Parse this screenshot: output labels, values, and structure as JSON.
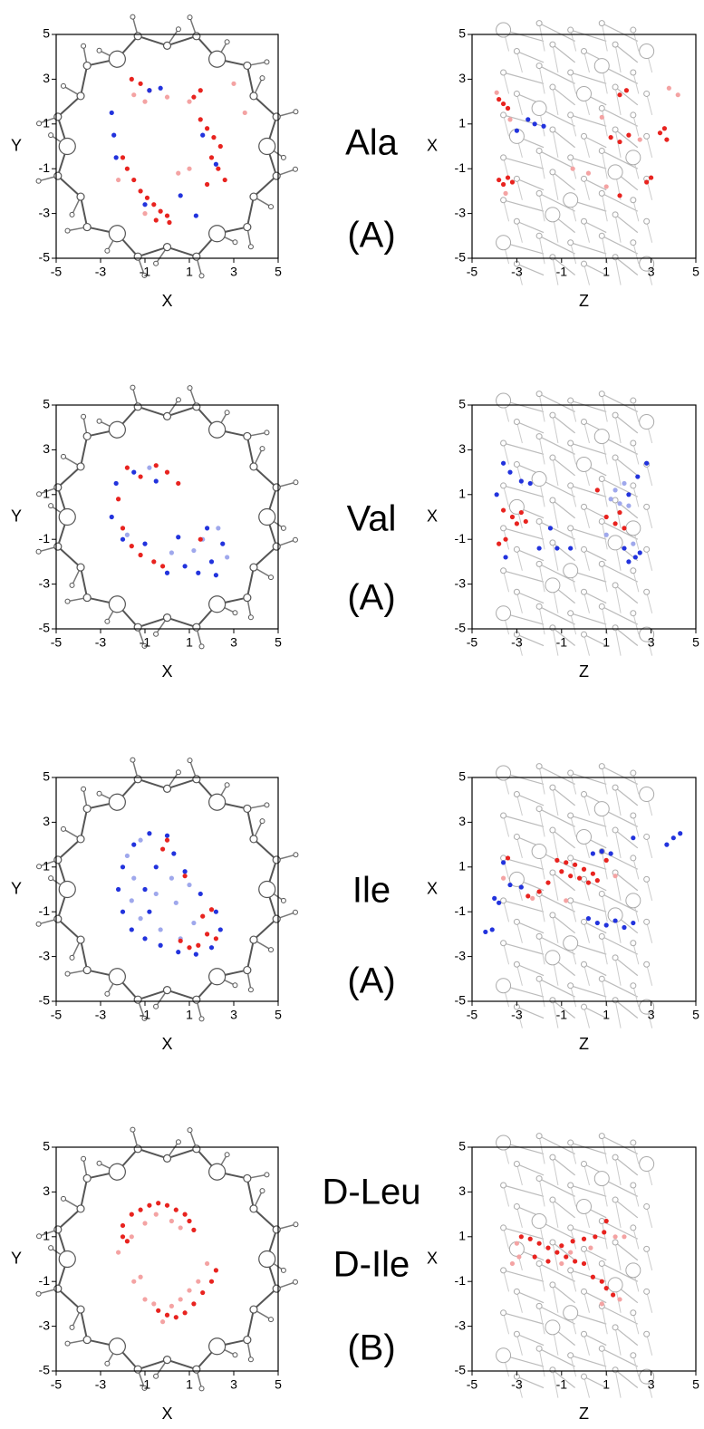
{
  "chart_data": [
    {
      "type": "scatter",
      "xlabel": "X",
      "ylabel": "Y",
      "xlim": [
        -5,
        5
      ],
      "ylim": [
        -5,
        5
      ],
      "xticks": [
        -5,
        -3,
        -1,
        1,
        3,
        5
      ],
      "yticks": [
        -5,
        -3,
        -1,
        1,
        3,
        5
      ],
      "decoration": "ring",
      "series": [
        {
          "color": "#f4a3a3",
          "x": [
            -1.5,
            -1.0,
            0,
            1.0,
            -2.2,
            -1.0,
            0.5,
            3.5,
            3.0,
            1.0
          ],
          "values": [
            2.3,
            2.0,
            2.2,
            2.0,
            -1.5,
            -3.0,
            -1.2,
            1.5,
            2.8,
            -1.0
          ]
        },
        {
          "color": "#e8231f",
          "x": [
            -1.6,
            -1.2,
            -0.8,
            -2.0,
            -1.8,
            -1.5,
            -1.2,
            -0.9,
            -0.6,
            -0.3,
            0,
            -0.5,
            0.1,
            1.5,
            1.8,
            2.1,
            2.4,
            2.0,
            2.3,
            2.6,
            1.8,
            1.2,
            1.5
          ],
          "values": [
            3,
            2.8,
            2.5,
            -0.5,
            -1.0,
            -1.5,
            -2.0,
            -2.3,
            -2.6,
            -2.9,
            -3.1,
            -3.3,
            -3.4,
            1.2,
            0.8,
            0.4,
            0,
            -0.5,
            -1.0,
            -1.5,
            -1.7,
            2.2,
            2.5
          ]
        },
        {
          "color": "#2233dd",
          "x": [
            -0.8,
            -0.3,
            -2.5,
            -2.4,
            -2.3,
            -1,
            0.6,
            1.3,
            1.6,
            2.2
          ],
          "values": [
            2.5,
            2.6,
            1.5,
            0.5,
            -0.5,
            -2.6,
            -2.2,
            -3.1,
            0.5,
            -0.8
          ]
        }
      ]
    },
    {
      "type": "scatter",
      "xlabel": "Z",
      "ylabel": "X",
      "xlim": [
        -5,
        5
      ],
      "ylim": [
        -5,
        5
      ],
      "xticks": [
        -5,
        -3,
        -1,
        1,
        3,
        5
      ],
      "yticks": [
        -5,
        -3,
        -1,
        1,
        3,
        5
      ],
      "decoration": "column",
      "series": [
        {
          "color": "#f4a3a3",
          "x": [
            -3.9,
            -3.3,
            3.8,
            4.2,
            0.8,
            -0.5,
            0.2,
            1.0,
            2.5,
            -3.5
          ],
          "values": [
            2.4,
            1.2,
            2.6,
            2.3,
            1.3,
            -1.0,
            -1.2,
            -1.8,
            0.3,
            -2.1
          ]
        },
        {
          "color": "#e8231f",
          "x": [
            -3.8,
            -3.6,
            -3.4,
            -3.8,
            -3.6,
            -3.4,
            -3.2,
            1.2,
            1.6,
            2.0,
            3.4,
            3.7,
            3.6,
            2.8,
            1.6,
            1.9,
            1.6,
            3.0
          ],
          "values": [
            2.1,
            1.9,
            1.7,
            -1.5,
            -1.7,
            -1.4,
            -1.6,
            0.4,
            0.2,
            0.5,
            0.6,
            0.3,
            0.8,
            -1.6,
            2.3,
            2.5,
            -2.2,
            -1.4
          ]
        },
        {
          "color": "#2233dd",
          "x": [
            -2.5,
            -2.2,
            -1.8,
            -3.0
          ],
          "values": [
            1.2,
            1.0,
            0.9,
            0.7
          ]
        }
      ]
    },
    {
      "type": "scatter",
      "xlabel": "X",
      "ylabel": "Y",
      "xlim": [
        -5,
        5
      ],
      "ylim": [
        -5,
        5
      ],
      "xticks": [
        -5,
        -3,
        -1,
        1,
        3,
        5
      ],
      "yticks": [
        -5,
        -3,
        -1,
        1,
        3,
        5
      ],
      "decoration": "ring",
      "series": [
        {
          "color": "#9fa8ec",
          "x": [
            1.2,
            1.6,
            2.3,
            0.2,
            -1.8,
            -0.8,
            2.7
          ],
          "values": [
            -1.5,
            -1.0,
            -0.5,
            -1.6,
            -0.8,
            2.2,
            -1.8
          ]
        },
        {
          "color": "#2233dd",
          "x": [
            -2.3,
            -2.5,
            -2.0,
            -1.0,
            0,
            0.8,
            1.4,
            2.0,
            2.5,
            1.8,
            0.5,
            -0.5,
            -1.5,
            2.2
          ],
          "values": [
            1.5,
            0,
            -1.0,
            -1.2,
            -2.5,
            -2.2,
            -2.5,
            -2.0,
            -1.2,
            -0.5,
            -0.9,
            1.6,
            2.0,
            -2.6
          ]
        },
        {
          "color": "#e8231f",
          "x": [
            -1.8,
            -1.2,
            -0.5,
            0,
            -2.2,
            -2.0,
            -1.6,
            -1.2,
            -0.6,
            -0.2,
            0.5,
            1.5
          ],
          "values": [
            2.2,
            1.8,
            2.3,
            2.0,
            0.8,
            -0.5,
            -1.3,
            -1.7,
            -2.0,
            -2.2,
            1.5,
            -1.0
          ]
        }
      ]
    },
    {
      "type": "scatter",
      "xlabel": "Z",
      "ylabel": "X",
      "xlim": [
        -5,
        5
      ],
      "ylim": [
        -5,
        5
      ],
      "xticks": [
        -5,
        -3,
        -1,
        1,
        3,
        5
      ],
      "yticks": [
        -5,
        -3,
        -1,
        1,
        3,
        5
      ],
      "decoration": "column",
      "series": [
        {
          "color": "#9fa8ec",
          "x": [
            1.2,
            1.6,
            2.0,
            1.4,
            1.8,
            1.0,
            2.2
          ],
          "values": [
            0.8,
            0.6,
            0.5,
            1.2,
            1.5,
            -0.8,
            -1.2
          ]
        },
        {
          "color": "#2233dd",
          "x": [
            -3.6,
            -3.3,
            -2.8,
            -2.4,
            -3.9,
            -2.0,
            -1.2,
            -0.6,
            -3.5,
            2.0,
            2.4,
            2.8,
            1.8,
            2.3,
            2.0,
            2.5,
            -1.5
          ],
          "values": [
            2.4,
            2.0,
            1.6,
            1.5,
            1.0,
            -1.4,
            -1.4,
            -1.4,
            -1.8,
            1.0,
            1.8,
            2.4,
            -1.4,
            -1.8,
            -2.0,
            -1.6,
            -0.5
          ]
        },
        {
          "color": "#e8231f",
          "x": [
            -3.2,
            -2.8,
            -2.6,
            -3.0,
            -3.8,
            -3.5,
            1.0,
            1.4,
            1.6,
            1.8,
            -3.6,
            0.6
          ],
          "values": [
            0,
            0.2,
            -0.2,
            -0.3,
            -1.2,
            -1.0,
            0,
            -0.3,
            0.2,
            -0.5,
            0.3,
            1.2
          ]
        }
      ]
    },
    {
      "type": "scatter",
      "xlabel": "X",
      "ylabel": "Y",
      "xlim": [
        -5,
        5
      ],
      "ylim": [
        -5,
        5
      ],
      "xticks": [
        -5,
        -3,
        -1,
        1,
        3,
        5
      ],
      "yticks": [
        -5,
        -3,
        -1,
        1,
        3,
        5
      ],
      "decoration": "ring",
      "series": [
        {
          "color": "#9fa8ec",
          "x": [
            -1.8,
            -1.2,
            -1.5,
            -1.6,
            -1.2,
            -0.3,
            0.6,
            1.2,
            0.4,
            0.2,
            1.0,
            -0.5
          ],
          "values": [
            1.5,
            2.2,
            0.5,
            -0.5,
            -1.3,
            -1.8,
            -2.2,
            -1.5,
            -0.6,
            0.5,
            0.2,
            -0.2
          ]
        },
        {
          "color": "#2233dd",
          "x": [
            -1.5,
            -0.8,
            0,
            -2.0,
            -2.2,
            -2.0,
            -1.6,
            -1.0,
            -0.3,
            0.5,
            1.3,
            2.0,
            2.4,
            2.2,
            1.5,
            0.8,
            0.3,
            -0.5,
            -1.0,
            -0.8
          ],
          "values": [
            2.0,
            2.5,
            2.4,
            1.0,
            0,
            -1.0,
            -1.8,
            -2.2,
            -2.5,
            -2.8,
            -2.9,
            -2.6,
            -1.8,
            -1.0,
            -0.2,
            0.8,
            1.6,
            1.0,
            0,
            -1.0
          ]
        },
        {
          "color": "#e8231f",
          "x": [
            0,
            -0.2,
            0.6,
            1.0,
            1.4,
            1.8,
            2.2,
            1.6,
            2.0,
            0.8
          ],
          "values": [
            2.2,
            1.8,
            -2.3,
            -2.6,
            -2.5,
            -2.0,
            -2.2,
            -1.2,
            -0.9,
            0.6
          ]
        }
      ]
    },
    {
      "type": "scatter",
      "xlabel": "Z",
      "ylabel": "X",
      "xlim": [
        -5,
        5
      ],
      "ylim": [
        -5,
        5
      ],
      "xticks": [
        -5,
        -3,
        -1,
        1,
        3,
        5
      ],
      "yticks": [
        -5,
        -3,
        -1,
        1,
        3,
        5
      ],
      "decoration": "column",
      "series": [
        {
          "color": "#f4a3a3",
          "x": [
            -2.3,
            -3.6,
            -0.8,
            1.4
          ],
          "values": [
            -0.4,
            0.5,
            -0.5,
            0.6
          ]
        },
        {
          "color": "#2233dd",
          "x": [
            -3.6,
            -3.3,
            -2.8,
            -4.0,
            -3.8,
            -4.4,
            -4.1,
            0.4,
            0.8,
            1.2,
            2.2,
            3.7,
            4.0,
            4.3,
            0.6,
            1.0,
            1.4,
            1.8,
            2.2,
            0.2
          ],
          "values": [
            1.2,
            0.2,
            0.1,
            -0.4,
            -0.6,
            -1.9,
            -1.8,
            1.6,
            1.7,
            1.6,
            2.3,
            2.0,
            2.3,
            2.5,
            -1.5,
            -1.6,
            -1.4,
            -1.7,
            -1.5,
            -1.3
          ]
        },
        {
          "color": "#e8231f",
          "x": [
            -1.2,
            -0.8,
            -0.4,
            0,
            0.4,
            -1.0,
            -0.6,
            -0.2,
            0.2,
            0.6,
            -3.4,
            -2.5,
            -1.6,
            -2.0,
            1.0
          ],
          "values": [
            1.3,
            1.2,
            1.1,
            0.9,
            0.7,
            0.8,
            0.6,
            0.5,
            0.3,
            0.4,
            1.4,
            -0.3,
            0.3,
            -0.1,
            1.3
          ]
        }
      ]
    },
    {
      "type": "scatter",
      "xlabel": "X",
      "ylabel": "Y",
      "xlim": [
        -5,
        5
      ],
      "ylim": [
        -5,
        5
      ],
      "xticks": [
        -5,
        -3,
        -1,
        1,
        3,
        5
      ],
      "yticks": [
        -5,
        -3,
        -1,
        1,
        3,
        5
      ],
      "decoration": "ring",
      "series": [
        {
          "color": "#f4a3a3",
          "x": [
            -2.2,
            -1.6,
            -1.0,
            -0.5,
            0.2,
            0.6,
            -1.5,
            -1.0,
            -0.6,
            -0.2,
            0.6,
            1.0,
            1.4,
            1.8,
            -1.2,
            0.2
          ],
          "values": [
            0.3,
            1.0,
            1.6,
            2.0,
            1.7,
            1.4,
            -1.0,
            -1.8,
            -2.0,
            -2.8,
            -1.8,
            -1.4,
            -1.0,
            -0.2,
            -0.8,
            -2.1
          ]
        },
        {
          "color": "#e8231f",
          "x": [
            -2,
            -2,
            -1.6,
            -1.2,
            -0.8,
            -0.4,
            0,
            0.4,
            0.8,
            1.0,
            1.2,
            -1.8,
            -0.4,
            0,
            0.4,
            0.8,
            1.2,
            1.6,
            2.0,
            2.2
          ],
          "values": [
            1.5,
            1.0,
            2.0,
            2.2,
            2.4,
            2.5,
            2.4,
            2.2,
            2.0,
            1.7,
            1.3,
            0.8,
            -2.3,
            -2.5,
            -2.6,
            -2.4,
            -2.0,
            -1.5,
            -1.0,
            -0.5
          ]
        }
      ]
    },
    {
      "type": "scatter",
      "xlabel": "Z",
      "ylabel": "X",
      "xlim": [
        -5,
        5
      ],
      "ylim": [
        -5,
        5
      ],
      "xticks": [
        -5,
        -3,
        -1,
        1,
        3,
        5
      ],
      "yticks": [
        -5,
        -3,
        -1,
        1,
        3,
        5
      ],
      "decoration": "column",
      "series": [
        {
          "color": "#f4a3a3",
          "x": [
            -3.0,
            -2.9,
            -3.2,
            1.4,
            1.8,
            -0.6,
            0.3,
            1.6,
            -1.0,
            0.8
          ],
          "values": [
            0.7,
            0.1,
            -0.2,
            1.0,
            1.0,
            0.3,
            0.5,
            -1.8,
            -0.2,
            -2.0
          ]
        },
        {
          "color": "#e8231f",
          "x": [
            -2.8,
            -2.4,
            -2.0,
            -1.6,
            -1.2,
            -0.8,
            -0.4,
            0,
            -1.0,
            -0.5,
            0,
            0.5,
            0.9,
            1.0,
            0.4,
            0.8,
            1.0,
            1.3,
            -2.2,
            -1.6
          ],
          "values": [
            1.0,
            0.9,
            0.7,
            0.5,
            0.3,
            0.1,
            -0.1,
            -0.2,
            0.6,
            0.8,
            0.9,
            1.0,
            1.2,
            1.7,
            -0.8,
            -1.0,
            -1.3,
            -1.6,
            0.1,
            -0.1
          ]
        }
      ]
    }
  ],
  "row_labels": [
    [
      "Ala",
      "(A)"
    ],
    [
      "Val",
      "(A)"
    ],
    [
      "Ile",
      "(A)"
    ],
    [
      "D-Leu",
      "D-Ile",
      "(B)"
    ]
  ]
}
